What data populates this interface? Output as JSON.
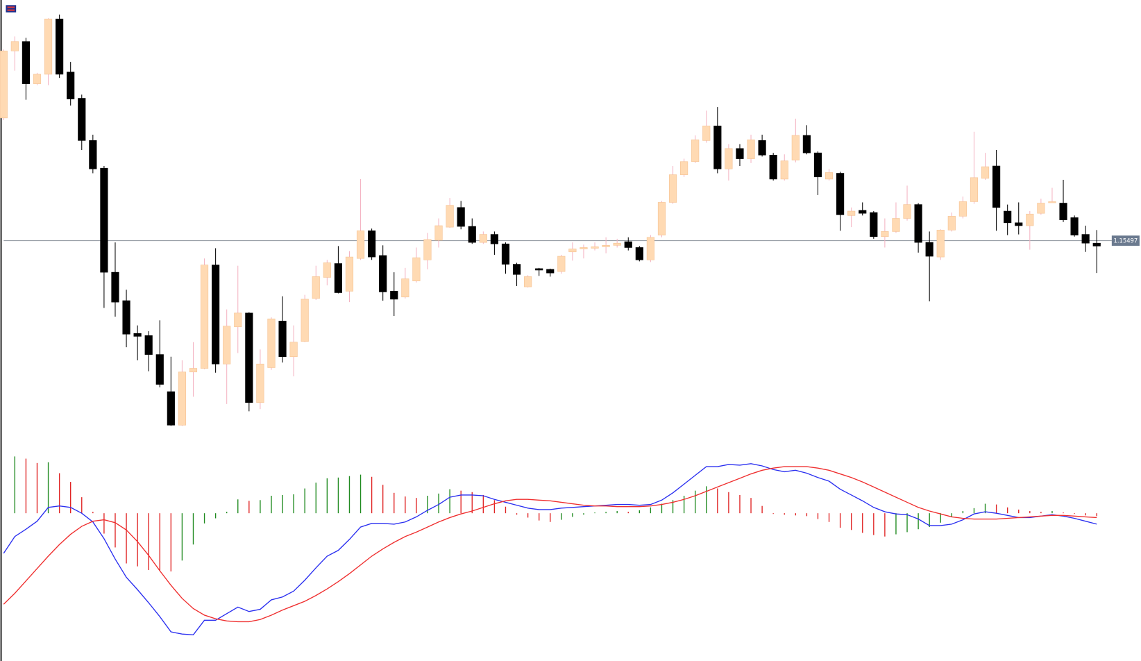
{
  "chart_data": [
    {
      "type": "candlestick",
      "ylim": [
        1.1415,
        1.1715
      ],
      "up_color": "#ffdab3",
      "up_edge": "#f6c394",
      "up_wick": "#f4b3c2",
      "down_color": "#000000",
      "price_line": 1.15497,
      "price_line_color": "#8a9099",
      "price_label_color": "#6b7a8f",
      "open": [
        1.1634,
        1.168,
        1.16865,
        1.16575,
        1.1664,
        1.1702,
        1.16655,
        1.16475,
        1.16185,
        1.15995,
        1.1528,
        1.15085,
        1.1486,
        1.14845,
        1.14715,
        1.1446,
        1.1423,
        1.14595,
        1.1462,
        1.1533,
        1.1465,
        1.14905,
        1.15,
        1.14385,
        1.14625,
        1.14945,
        1.147,
        1.14805,
        1.151,
        1.15245,
        1.1534,
        1.1515,
        1.15375,
        1.15565,
        1.15395,
        1.1515,
        1.1511,
        1.1522,
        1.15365,
        1.155,
        1.1559,
        1.15725,
        1.15595,
        1.15485,
        1.1554,
        1.15475,
        1.15335,
        1.1518,
        1.15305,
        1.153,
        1.15285,
        1.1542,
        1.1544,
        1.15445,
        1.15455,
        1.15465,
        1.1549,
        1.1545,
        1.15365,
        1.15535,
        1.1576,
        1.1595,
        1.1604,
        1.16185,
        1.16285,
        1.1599,
        1.1613,
        1.1606,
        1.16185,
        1.16085,
        1.1592,
        1.1605,
        1.1622,
        1.161,
        1.1592,
        1.1596,
        1.1567,
        1.15705,
        1.1569,
        1.15525,
        1.1556,
        1.1565,
        1.15745,
        1.15485,
        1.15385,
        1.1557,
        1.15665,
        1.15765,
        1.15925,
        1.1601,
        1.157,
        1.1562,
        1.156,
        1.15685,
        1.1576,
        1.15755,
        1.15655,
        1.1554,
        1.1548
      ],
      "high": [
        1.1681,
        1.169,
        1.1689,
        1.1665,
        1.17025,
        1.1705,
        1.16725,
        1.165,
        1.16225,
        1.1601,
        1.15485,
        1.1516,
        1.14915,
        1.14875,
        1.1495,
        1.147,
        1.14675,
        1.148,
        1.15375,
        1.15445,
        1.15025,
        1.15325,
        1.15005,
        1.1475,
        1.1497,
        1.15115,
        1.14915,
        1.15125,
        1.15325,
        1.15365,
        1.1546,
        1.15425,
        1.1592,
        1.1558,
        1.15465,
        1.1528,
        1.1531,
        1.1545,
        1.1555,
        1.1565,
        1.1579,
        1.1577,
        1.1565,
        1.1556,
        1.1556,
        1.15485,
        1.15345,
        1.1526,
        1.1531,
        1.15305,
        1.154,
        1.15485,
        1.1547,
        1.15485,
        1.1552,
        1.1551,
        1.1552,
        1.1546,
        1.15535,
        1.1577,
        1.1601,
        1.1606,
        1.1622,
        1.1639,
        1.16415,
        1.1616,
        1.1616,
        1.16225,
        1.16225,
        1.161,
        1.1609,
        1.16335,
        1.1629,
        1.1611,
        1.1599,
        1.1597,
        1.15725,
        1.1576,
        1.157,
        1.1565,
        1.1576,
        1.15875,
        1.15755,
        1.1556,
        1.15575,
        1.1569,
        1.158,
        1.16245,
        1.161,
        1.1612,
        1.15745,
        1.1576,
        1.157,
        1.15785,
        1.1586,
        1.15915,
        1.1567,
        1.156,
        1.1557
      ],
      "low": [
        1.16325,
        1.16665,
        1.16465,
        1.16565,
        1.16565,
        1.16615,
        1.16425,
        1.1612,
        1.1596,
        1.15035,
        1.14975,
        1.14765,
        1.14675,
        1.146,
        1.1449,
        1.14225,
        1.14225,
        1.14425,
        1.14615,
        1.1459,
        1.14375,
        1.14725,
        1.14325,
        1.1434,
        1.1461,
        1.1466,
        1.14565,
        1.148,
        1.1509,
        1.1519,
        1.15135,
        1.15075,
        1.15365,
        1.15365,
        1.15085,
        1.1498,
        1.151,
        1.1521,
        1.153,
        1.1545,
        1.15585,
        1.15575,
        1.15475,
        1.15475,
        1.154,
        1.1527,
        1.15185,
        1.15175,
        1.15255,
        1.1525,
        1.1527,
        1.1536,
        1.15375,
        1.1543,
        1.1541,
        1.1545,
        1.1543,
        1.15355,
        1.1535,
        1.1552,
        1.1575,
        1.15935,
        1.1603,
        1.1617,
        1.1596,
        1.1591,
        1.1601,
        1.1603,
        1.16075,
        1.1591,
        1.1591,
        1.16035,
        1.1609,
        1.1581,
        1.1591,
        1.15565,
        1.1559,
        1.1567,
        1.1551,
        1.1545,
        1.1555,
        1.15635,
        1.15415,
        1.1508,
        1.15365,
        1.1556,
        1.1565,
        1.1575,
        1.15915,
        1.15565,
        1.15535,
        1.1554,
        1.15435,
        1.15675,
        1.1576,
        1.15625,
        1.15525,
        1.1542,
        1.15275
      ],
      "close": [
        1.168,
        1.16865,
        1.16575,
        1.1664,
        1.1702,
        1.1664,
        1.1647,
        1.16185,
        1.1599,
        1.1528,
        1.15075,
        1.14855,
        1.1484,
        1.14715,
        1.1451,
        1.1423,
        1.14595,
        1.1462,
        1.1533,
        1.1465,
        1.1491,
        1.15,
        1.14385,
        1.1465,
        1.1496,
        1.147,
        1.148,
        1.15095,
        1.1525,
        1.15345,
        1.1514,
        1.15385,
        1.15565,
        1.15385,
        1.15145,
        1.15095,
        1.15235,
        1.1538,
        1.15505,
        1.156,
        1.1574,
        1.15595,
        1.15485,
        1.1554,
        1.15475,
        1.15335,
        1.15265,
        1.1525,
        1.15295,
        1.15275,
        1.1539,
        1.1544,
        1.1545,
        1.15455,
        1.15465,
        1.1548,
        1.1545,
        1.15365,
        1.1552,
        1.1576,
        1.1595,
        1.1604,
        1.1619,
        1.16285,
        1.1599,
        1.1613,
        1.1606,
        1.1619,
        1.16085,
        1.1592,
        1.16045,
        1.1622,
        1.161,
        1.15935,
        1.15965,
        1.15675,
        1.157,
        1.15685,
        1.15525,
        1.1556,
        1.1565,
        1.15745,
        1.15485,
        1.1539,
        1.1557,
        1.15665,
        1.15765,
        1.1593,
        1.16005,
        1.15725,
        1.1562,
        1.156,
        1.1568,
        1.15755,
        1.15765,
        1.1564,
        1.15535,
        1.1548,
        1.1546
      ]
    },
    {
      "type": "macd",
      "ylim": [
        -0.00975,
        0.00525
      ],
      "hist_up_color": "#1f8a1f",
      "hist_down_color": "#e02424",
      "histogram": [
        null,
        0.0039,
        0.00375,
        0.00345,
        0.0035,
        0.00275,
        0.00215,
        0.0011,
        0.0001,
        -0.0014,
        -0.00235,
        -0.00345,
        -0.00365,
        -0.0039,
        -0.00395,
        -0.004,
        -0.00325,
        -0.00215,
        -0.0007,
        -0.00035,
        0.0001,
        0.00095,
        0.00085,
        0.0009,
        0.0012,
        0.00125,
        0.0013,
        0.0017,
        0.0021,
        0.0024,
        0.00245,
        0.00255,
        0.00265,
        0.0025,
        0.00195,
        0.0014,
        0.00115,
        0.00105,
        0.0012,
        0.00135,
        0.00165,
        0.00155,
        0.00145,
        0.00125,
        0.0009,
        0.00045,
        -0.0001,
        -0.0003,
        -0.0005,
        -0.0006,
        -0.00045,
        -0.00025,
        -0.0001,
        5e-05,
        0.0001,
        0.00015,
        0.0001,
        0.0002,
        0.0004,
        0.00065,
        0.0009,
        0.0012,
        0.00155,
        0.00185,
        0.0017,
        0.00145,
        0.00125,
        0.00105,
        0.0005,
        -5e-05,
        -0.0001,
        -0.00015,
        -0.0002,
        -0.0004,
        -0.0006,
        -0.001,
        -0.00115,
        -0.00135,
        -0.0015,
        -0.0016,
        -0.00145,
        -0.0013,
        -0.0011,
        -0.00095,
        -0.00065,
        -0.00025,
        0.00015,
        0.00035,
        0.00065,
        0.0006,
        0.0004,
        0.00025,
        0.00015,
        0.0001,
        0.00015,
        5e-05,
        -5e-05,
        -0.00015,
        -0.0002
      ],
      "series": [
        {
          "color": "#2a2ff0",
          "values": [
            -0.00275,
            -0.0016,
            -0.0011,
            -0.00055,
            0.0004,
            0.0005,
            0.0004,
            0,
            -0.0006,
            -0.00175,
            -0.00315,
            -0.0044,
            -0.00525,
            -0.00615,
            -0.0071,
            -0.00815,
            -0.0083,
            -0.00835,
            -0.00735,
            -0.00735,
            -0.0069,
            -0.00645,
            -0.00675,
            -0.0066,
            -0.00595,
            -0.00575,
            -0.00535,
            -0.0046,
            -0.00375,
            -0.00295,
            -0.00255,
            -0.0018,
            -0.00095,
            -0.0007,
            -0.0007,
            -0.00075,
            -0.0006,
            -0.00025,
            0.0002,
            0.0006,
            0.0011,
            0.00125,
            0.00125,
            0.0012,
            0.00095,
            0.00075,
            0.00055,
            0.00035,
            0.00025,
            0.00025,
            0.00035,
            0.0004,
            0.00045,
            0.0005,
            0.00055,
            0.0006,
            0.0006,
            0.00055,
            0.0006,
            0.0009,
            0.0014,
            0.002,
            0.0026,
            0.0032,
            0.0032,
            0.00335,
            0.0033,
            0.0034,
            0.00325,
            0.003,
            0.00285,
            0.00295,
            0.00275,
            0.00245,
            0.0022,
            0.00165,
            0.00125,
            0.00085,
            0.0004,
            0.0001,
            -5e-05,
            -0.0001,
            -0.0004,
            -0.00085,
            -0.00085,
            -0.00075,
            -0.00045,
            -5e-05,
            0.0001,
            0,
            -0.00015,
            -0.0003,
            -0.0003,
            -0.0002,
            -0.0001,
            -0.0002,
            -0.00035,
            -0.00055,
            -0.00075
          ]
        },
        {
          "color": "#ef2f2f",
          "values": [
            -0.00625,
            -0.0055,
            -0.00465,
            -0.0038,
            -0.00295,
            -0.00215,
            -0.00145,
            -0.0009,
            -0.00055,
            -0.00045,
            -0.00065,
            -0.00115,
            -0.00195,
            -0.0029,
            -0.00395,
            -0.00495,
            -0.00585,
            -0.00655,
            -0.007,
            -0.00725,
            -0.0074,
            -0.00745,
            -0.00745,
            -0.0073,
            -0.007,
            -0.00665,
            -0.00635,
            -0.00605,
            -0.00565,
            -0.0052,
            -0.0047,
            -0.00415,
            -0.00355,
            -0.00295,
            -0.00245,
            -0.002,
            -0.0016,
            -0.0013,
            -0.00095,
            -0.0006,
            -0.0003,
            -5e-05,
            0.00015,
            0.0004,
            0.00065,
            0.00085,
            0.00095,
            0.00095,
            0.0009,
            0.00085,
            0.00075,
            0.00065,
            0.00055,
            0.0005,
            0.0005,
            0.00045,
            0.00045,
            0.00045,
            0.0005,
            0.0006,
            0.00075,
            0.00095,
            0.0012,
            0.0015,
            0.0018,
            0.0021,
            0.0024,
            0.0027,
            0.00295,
            0.0031,
            0.0032,
            0.0032,
            0.0032,
            0.0031,
            0.00295,
            0.0027,
            0.00245,
            0.00215,
            0.0018,
            0.00145,
            0.0011,
            0.00075,
            0.0004,
            0.00015,
            -5e-05,
            -0.00025,
            -0.00035,
            -0.0004,
            -0.0004,
            -0.0004,
            -0.00035,
            -0.0003,
            -0.00025,
            -0.0002,
            -0.00015,
            -0.00015,
            -0.0002,
            -0.00025,
            -0.0003
          ]
        }
      ]
    }
  ]
}
